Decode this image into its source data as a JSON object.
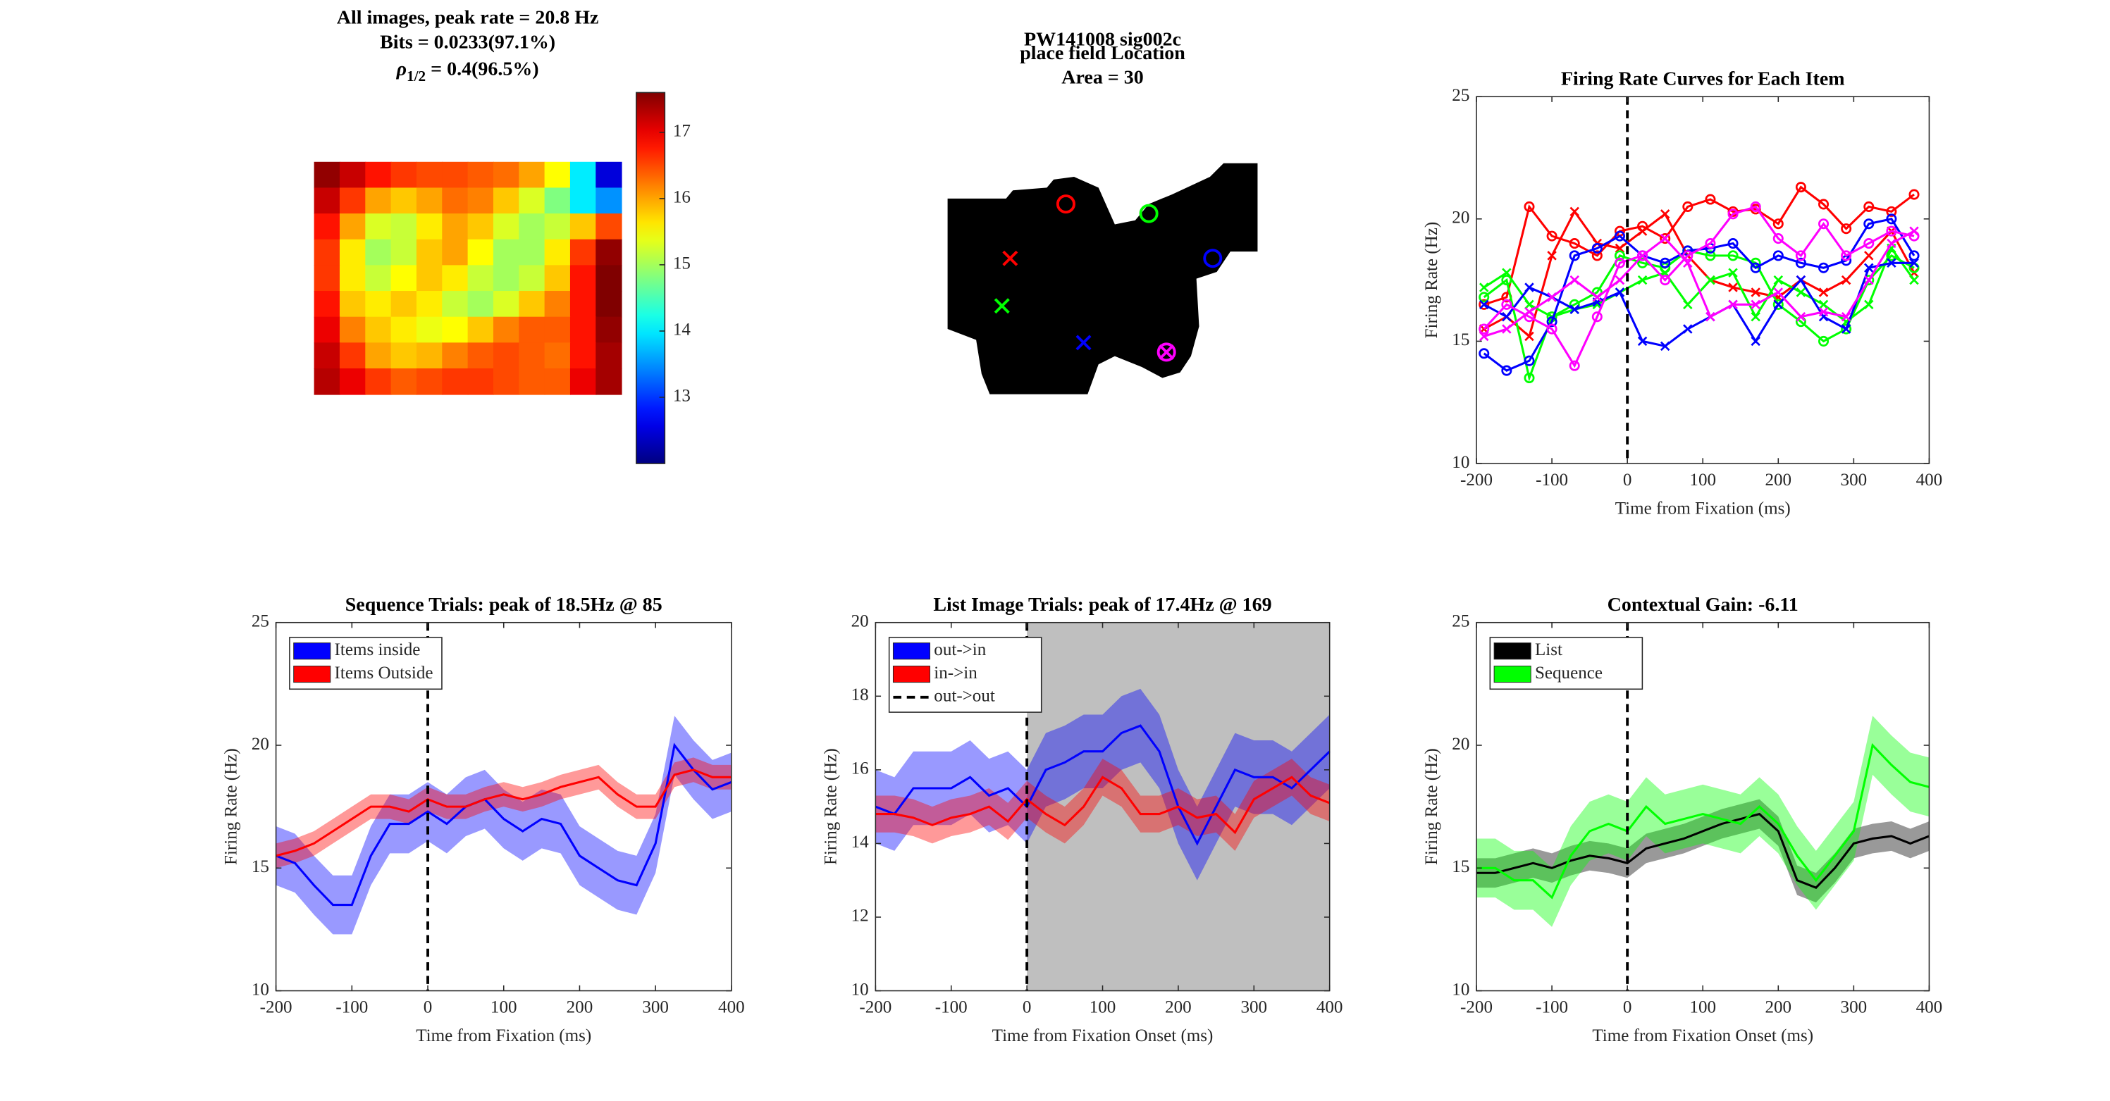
{
  "chart_data": [
    {
      "type": "heatmap",
      "title": [
        "All images, peak rate = 20.8 Hz",
        "Bits = 0.0233(97.1%)"
      ],
      "rho": {
        "symbol": "ρ",
        "subscript": "1/2",
        "text": " = 0.4(96.5%)"
      },
      "z": [
        [
          17.5,
          17.2,
          16.8,
          16.6,
          16.5,
          16.5,
          16.4,
          16.3,
          16.0,
          15.5,
          14.0,
          12.5
        ],
        [
          17.2,
          16.6,
          16.0,
          15.8,
          16.0,
          16.3,
          16.2,
          15.8,
          15.3,
          14.8,
          14.0,
          13.5
        ],
        [
          16.8,
          16.0,
          15.3,
          15.2,
          15.6,
          16.0,
          15.8,
          15.3,
          15.0,
          15.2,
          15.8,
          16.5
        ],
        [
          16.6,
          15.6,
          15.0,
          15.2,
          15.8,
          16.0,
          15.5,
          15.0,
          15.0,
          15.6,
          16.6,
          17.5
        ],
        [
          16.6,
          15.6,
          15.2,
          15.5,
          15.8,
          15.6,
          15.2,
          15.0,
          15.2,
          15.8,
          16.8,
          17.6
        ],
        [
          16.8,
          15.8,
          15.6,
          15.8,
          15.6,
          15.2,
          15.0,
          15.3,
          15.8,
          16.2,
          16.8,
          17.6
        ],
        [
          17.0,
          16.2,
          15.8,
          15.6,
          15.4,
          15.5,
          15.8,
          16.2,
          16.4,
          16.4,
          16.8,
          17.5
        ],
        [
          17.2,
          16.6,
          16.0,
          15.8,
          15.9,
          16.2,
          16.4,
          16.5,
          16.4,
          16.3,
          16.8,
          17.4
        ],
        [
          17.3,
          17.0,
          16.6,
          16.4,
          16.5,
          16.6,
          16.6,
          16.5,
          16.4,
          16.4,
          17.0,
          17.4
        ]
      ],
      "clim": [
        12.0,
        17.6
      ],
      "cticks": [
        13,
        14,
        15,
        16,
        17
      ],
      "colormap": "jet"
    },
    {
      "type": "map",
      "title": [
        "PW141008 sig002c",
        "place field Location",
        "Area = 30"
      ]
    },
    {
      "type": "line",
      "title": "Firing Rate Curves for Each Item",
      "xlabel": "Time from Fixation (ms)",
      "ylabel": "Firing Rate (Hz)",
      "x": [
        -190,
        -160,
        -130,
        -100,
        -70,
        -40,
        -10,
        20,
        50,
        80,
        110,
        140,
        170,
        200,
        230,
        260,
        290,
        320,
        350,
        380
      ],
      "xlim": [
        -200,
        400
      ],
      "xticks": [
        -200,
        -100,
        0,
        100,
        200,
        300,
        400
      ],
      "ylim": [
        10,
        25
      ],
      "yticks": [
        10,
        15,
        20,
        25
      ],
      "vline": 0,
      "series": [
        {
          "color": "#ff0000",
          "marker": "o",
          "values": [
            16.5,
            16.8,
            20.5,
            19.3,
            19.0,
            18.5,
            19.5,
            19.7,
            19.2,
            20.5,
            20.8,
            20.3,
            20.4,
            19.8,
            21.3,
            20.6,
            19.6,
            20.5,
            20.3,
            21.0
          ]
        },
        {
          "color": "#ff0000",
          "marker": "x",
          "values": [
            15.5,
            16.0,
            15.2,
            18.5,
            20.3,
            19.0,
            18.8,
            19.5,
            20.2,
            18.5,
            17.5,
            17.2,
            17.0,
            16.8,
            17.5,
            17.0,
            17.5,
            18.5,
            19.5,
            17.8
          ]
        },
        {
          "color": "#00ff00",
          "marker": "o",
          "values": [
            16.8,
            17.5,
            13.5,
            16.0,
            16.5,
            17.0,
            18.5,
            18.2,
            18.0,
            18.7,
            18.5,
            18.5,
            18.2,
            16.5,
            15.8,
            15.0,
            15.5,
            17.5,
            18.5,
            18.0
          ]
        },
        {
          "color": "#00ff00",
          "marker": "x",
          "values": [
            17.2,
            17.8,
            16.5,
            16.0,
            16.3,
            16.5,
            17.0,
            17.5,
            17.8,
            16.5,
            17.5,
            17.8,
            16.0,
            17.5,
            17.0,
            16.5,
            15.8,
            16.5,
            18.8,
            17.5
          ]
        },
        {
          "color": "#0000ff",
          "marker": "o",
          "values": [
            14.5,
            13.8,
            14.2,
            15.8,
            18.5,
            18.8,
            19.3,
            18.5,
            18.2,
            18.7,
            18.8,
            19.0,
            18.0,
            18.5,
            18.2,
            18.0,
            18.3,
            19.8,
            20.0,
            18.5
          ]
        },
        {
          "color": "#0000ff",
          "marker": "x",
          "values": [
            16.5,
            16.0,
            17.2,
            16.8,
            16.3,
            16.6,
            17.0,
            15.0,
            14.8,
            15.5,
            16.0,
            16.5,
            15.0,
            16.5,
            17.5,
            16.0,
            15.5,
            18.0,
            18.2,
            18.2
          ]
        },
        {
          "color": "#ff00ff",
          "marker": "o",
          "values": [
            15.5,
            16.5,
            16.0,
            15.5,
            14.0,
            16.0,
            18.2,
            18.5,
            17.5,
            18.5,
            19.0,
            20.2,
            20.5,
            19.2,
            18.5,
            19.8,
            18.5,
            19.0,
            19.5,
            19.3
          ]
        },
        {
          "color": "#ff00ff",
          "marker": "x",
          "values": [
            15.2,
            15.5,
            16.2,
            16.8,
            17.5,
            16.8,
            17.5,
            18.5,
            19.2,
            18.2,
            16.0,
            16.5,
            16.5,
            17.0,
            16.0,
            16.2,
            16.0,
            17.5,
            19.0,
            19.5
          ]
        }
      ]
    },
    {
      "type": "line",
      "title": "Sequence Trials: peak of 18.5Hz @ 85",
      "xlabel": "Time from Fixation (ms)",
      "ylabel": "Firing Rate (Hz)",
      "x": [
        -200,
        -175,
        -150,
        -125,
        -100,
        -75,
        -50,
        -25,
        0,
        25,
        50,
        75,
        100,
        125,
        150,
        175,
        200,
        225,
        250,
        275,
        300,
        325,
        350,
        375,
        400
      ],
      "xlim": [
        -200,
        400
      ],
      "xticks": [
        -200,
        -100,
        0,
        100,
        200,
        300,
        400
      ],
      "ylim": [
        10,
        25
      ],
      "yticks": [
        10,
        15,
        20,
        25
      ],
      "vline": 0,
      "legend": "upper left",
      "series": [
        {
          "name": "Items inside",
          "color": "#0000ff",
          "values": [
            15.5,
            15.2,
            14.3,
            13.5,
            13.5,
            15.5,
            16.8,
            16.8,
            17.3,
            16.8,
            17.5,
            17.8,
            17.0,
            16.5,
            17.0,
            16.8,
            15.5,
            15.0,
            14.5,
            14.3,
            16.0,
            20.0,
            19.0,
            18.2,
            18.5
          ],
          "errors": [
            1.2,
            1.2,
            1.2,
            1.2,
            1.2,
            1.2,
            1.2,
            1.2,
            1.2,
            1.2,
            1.2,
            1.2,
            1.2,
            1.2,
            1.2,
            1.2,
            1.2,
            1.2,
            1.2,
            1.2,
            1.2,
            1.2,
            1.2,
            1.2,
            1.2
          ]
        },
        {
          "name": "Items Outside",
          "color": "#ff0000",
          "values": [
            15.5,
            15.7,
            16.0,
            16.5,
            17.0,
            17.5,
            17.5,
            17.3,
            17.8,
            17.5,
            17.5,
            17.8,
            18.0,
            17.8,
            18.0,
            18.3,
            18.5,
            18.7,
            18.0,
            17.5,
            17.5,
            18.8,
            19.0,
            18.7,
            18.7
          ],
          "errors": [
            0.5,
            0.5,
            0.5,
            0.5,
            0.5,
            0.5,
            0.5,
            0.5,
            0.5,
            0.5,
            0.5,
            0.5,
            0.5,
            0.5,
            0.5,
            0.5,
            0.5,
            0.5,
            0.5,
            0.5,
            0.5,
            0.5,
            0.5,
            0.5,
            0.5
          ]
        }
      ]
    },
    {
      "type": "line",
      "title": "List Image Trials: peak of 17.4Hz @ 169",
      "xlabel": "Time from Fixation Onset (ms)",
      "ylabel": "Firing Rate (Hz)",
      "x": [
        -200,
        -175,
        -150,
        -125,
        -100,
        -75,
        -50,
        -25,
        0,
        25,
        50,
        75,
        100,
        125,
        150,
        175,
        200,
        225,
        250,
        275,
        300,
        325,
        350,
        375,
        400
      ],
      "xlim": [
        -200,
        400
      ],
      "xticks": [
        -200,
        -100,
        0,
        100,
        200,
        300,
        400
      ],
      "ylim": [
        10,
        20
      ],
      "yticks": [
        10,
        12,
        14,
        16,
        18,
        20
      ],
      "vline": 0,
      "vline_name": "out->out",
      "shade": [
        0,
        400
      ],
      "shade_color": "#bfbfbf",
      "legend": "upper left",
      "series": [
        {
          "name": "out->in",
          "color": "#0000ff",
          "values": [
            15.0,
            14.8,
            15.5,
            15.5,
            15.5,
            15.8,
            15.3,
            15.5,
            15.0,
            16.0,
            16.2,
            16.5,
            16.5,
            17.0,
            17.2,
            16.5,
            15.0,
            14.0,
            15.0,
            16.0,
            15.8,
            15.8,
            15.5,
            16.0,
            16.5
          ],
          "errors": [
            1.0,
            1.0,
            1.0,
            1.0,
            1.0,
            1.0,
            1.0,
            1.0,
            1.0,
            1.0,
            1.0,
            1.0,
            1.0,
            1.0,
            1.0,
            1.0,
            1.0,
            1.0,
            1.0,
            1.0,
            1.0,
            1.0,
            1.0,
            1.0,
            1.0
          ]
        },
        {
          "name": "in->in",
          "color": "#ff0000",
          "values": [
            14.8,
            14.8,
            14.7,
            14.5,
            14.7,
            14.8,
            15.0,
            14.6,
            15.2,
            14.8,
            14.5,
            15.0,
            15.8,
            15.5,
            14.8,
            14.8,
            15.0,
            14.7,
            14.8,
            14.3,
            15.2,
            15.5,
            15.8,
            15.3,
            15.1
          ],
          "errors": [
            0.5,
            0.5,
            0.5,
            0.5,
            0.5,
            0.5,
            0.5,
            0.5,
            0.5,
            0.5,
            0.5,
            0.5,
            0.5,
            0.5,
            0.5,
            0.5,
            0.5,
            0.5,
            0.5,
            0.5,
            0.5,
            0.5,
            0.5,
            0.5,
            0.5
          ]
        }
      ]
    },
    {
      "type": "line",
      "title": "Contextual Gain: -6.11",
      "xlabel": "Time from Fixation Onset (ms)",
      "ylabel": "Firing Rate (Hz)",
      "x": [
        -200,
        -175,
        -150,
        -125,
        -100,
        -75,
        -50,
        -25,
        0,
        25,
        50,
        75,
        100,
        125,
        150,
        175,
        200,
        225,
        250,
        275,
        300,
        325,
        350,
        375,
        400
      ],
      "xlim": [
        -200,
        400
      ],
      "xticks": [
        -200,
        -100,
        0,
        100,
        200,
        300,
        400
      ],
      "ylim": [
        10,
        25
      ],
      "yticks": [
        10,
        15,
        20,
        25
      ],
      "vline": 0,
      "legend": "upper left",
      "series": [
        {
          "name": "List",
          "color": "#000000",
          "values": [
            14.8,
            14.8,
            15.0,
            15.2,
            15.0,
            15.3,
            15.5,
            15.4,
            15.2,
            15.8,
            16.0,
            16.2,
            16.5,
            16.8,
            17.0,
            17.2,
            16.5,
            14.5,
            14.2,
            15.0,
            16.0,
            16.2,
            16.3,
            16.0,
            16.3
          ],
          "errors": [
            0.6,
            0.6,
            0.6,
            0.6,
            0.6,
            0.6,
            0.6,
            0.6,
            0.6,
            0.6,
            0.6,
            0.6,
            0.6,
            0.6,
            0.6,
            0.6,
            0.6,
            0.6,
            0.6,
            0.6,
            0.6,
            0.6,
            0.6,
            0.6,
            0.6
          ]
        },
        {
          "name": "Sequence",
          "color": "#00ff00",
          "values": [
            15.0,
            15.0,
            14.5,
            14.5,
            13.8,
            15.5,
            16.5,
            16.8,
            16.5,
            17.5,
            16.8,
            17.0,
            17.2,
            17.0,
            16.8,
            17.5,
            16.8,
            15.5,
            14.5,
            15.5,
            16.5,
            20.0,
            19.2,
            18.5,
            18.3
          ],
          "errors": [
            1.2,
            1.2,
            1.2,
            1.2,
            1.2,
            1.2,
            1.2,
            1.2,
            1.2,
            1.2,
            1.2,
            1.2,
            1.2,
            1.2,
            1.2,
            1.2,
            1.2,
            1.2,
            1.2,
            1.2,
            1.2,
            1.2,
            1.2,
            1.2,
            1.2
          ]
        }
      ]
    }
  ]
}
